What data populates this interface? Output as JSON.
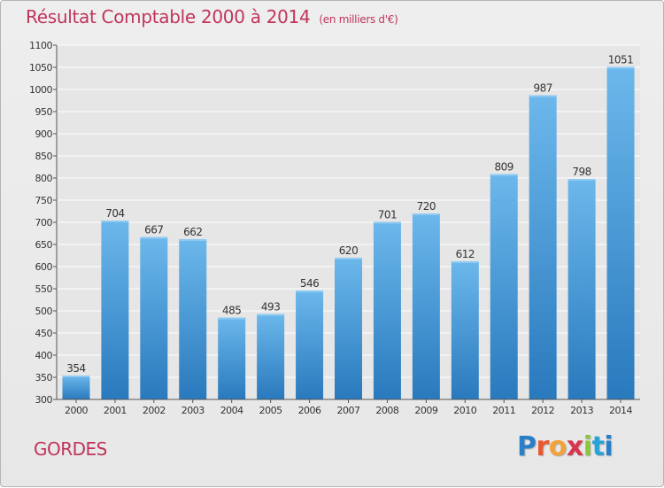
{
  "title": "Résultat Comptable 2000 à 2014",
  "subtitle": "(en milliers d'€)",
  "commune": "GORDES",
  "logo_text": "Proxiti",
  "colors": {
    "title": "#c0355a",
    "bar_light": "#6cb8ec",
    "bar_dark": "#2979bd",
    "axis": "#555555",
    "grid": "#ffffff"
  },
  "chart_data": {
    "type": "bar",
    "title": "Résultat Comptable 2000 à 2014",
    "subtitle": "(en milliers d'€)",
    "categories": [
      "2000",
      "2001",
      "2002",
      "2003",
      "2004",
      "2005",
      "2006",
      "2007",
      "2008",
      "2009",
      "2010",
      "2011",
      "2012",
      "2013",
      "2014"
    ],
    "values": [
      354,
      704,
      667,
      662,
      485,
      493,
      546,
      620,
      701,
      720,
      612,
      809,
      987,
      798,
      1051
    ],
    "ylim": [
      300,
      1100
    ],
    "ytick_step": 50,
    "yticks": [
      300,
      350,
      400,
      450,
      500,
      550,
      600,
      650,
      700,
      750,
      800,
      850,
      900,
      950,
      1000,
      1050,
      1100
    ],
    "grid": true,
    "xlabel": "",
    "ylabel": ""
  }
}
